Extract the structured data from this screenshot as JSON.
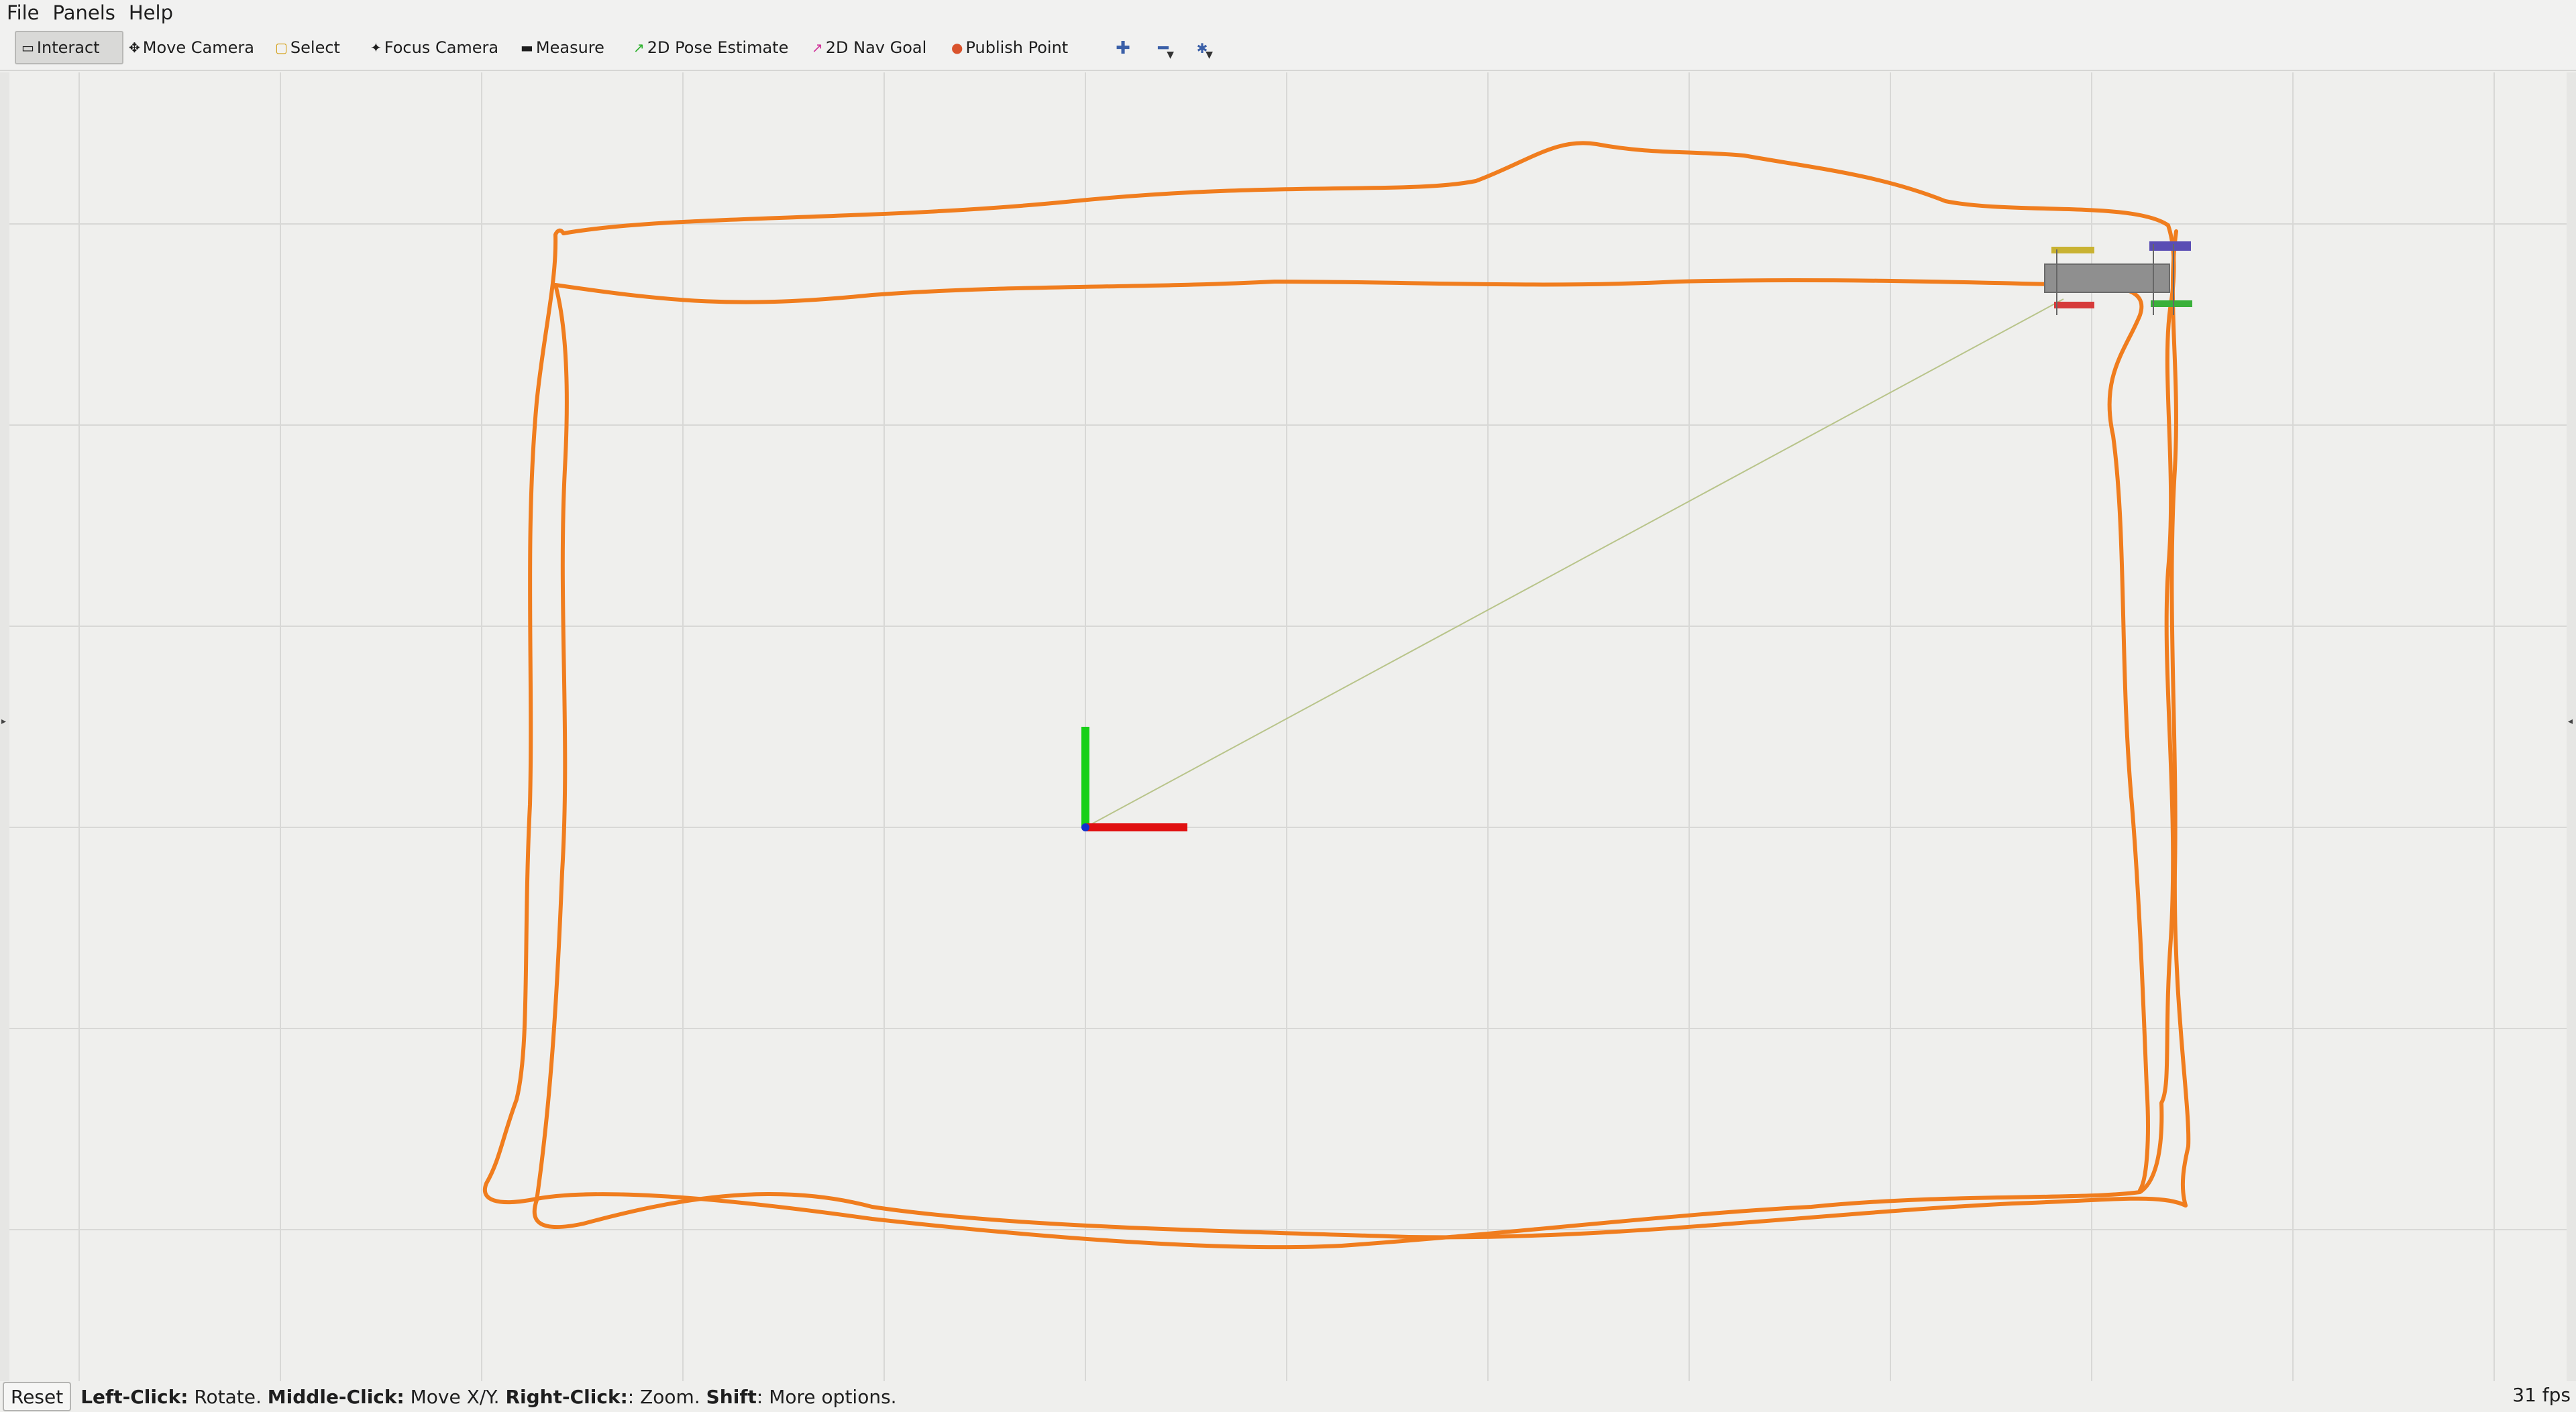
{
  "menu": {
    "file": "File",
    "panels": "Panels",
    "help": "Help"
  },
  "toolbar": {
    "tools": [
      {
        "label": "Interact",
        "icon": "cursor-icon",
        "active": true
      },
      {
        "label": "Move Camera",
        "icon": "move-icon"
      },
      {
        "label": "Select",
        "icon": "select-box-icon"
      },
      {
        "label": "Focus Camera",
        "icon": "focus-icon"
      },
      {
        "label": "Measure",
        "icon": "ruler-icon"
      },
      {
        "label": "2D Pose Estimate",
        "icon": "pose-arrow-icon",
        "color": "#2bb02b"
      },
      {
        "label": "2D Nav Goal",
        "icon": "goal-arrow-icon",
        "color": "#d0349a"
      },
      {
        "label": "Publish Point",
        "icon": "pin-icon",
        "color": "#d9532c"
      }
    ],
    "view_controls": [
      "plus-icon",
      "minus-icon",
      "star-icon"
    ]
  },
  "viewport": {
    "background": "#efefed",
    "grid_color": "#d8d8d6",
    "path_color": "#f07d1e",
    "axis_x_color": "#e01010",
    "axis_y_color": "#18d018",
    "axis_z_color": "#1030d0"
  },
  "status": {
    "reset_label": "Reset",
    "hint_left_click_key": "Left-Click:",
    "hint_left_click": "Rotate.",
    "hint_middle_click_key": "Middle-Click:",
    "hint_middle_click": "Move X/Y.",
    "hint_right_click_key": "Right-Click:",
    "hint_right_click": ": Zoom.",
    "hint_shift_key": "Shift",
    "hint_shift": ": More options.",
    "fps": "31 fps"
  }
}
